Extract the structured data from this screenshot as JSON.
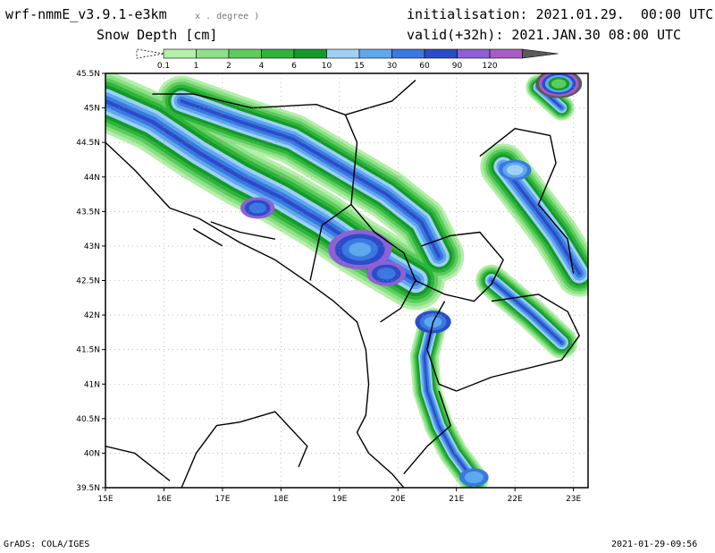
{
  "header": {
    "model": "wrf-nmmE_v3.9.1-e3km",
    "units_note": "x . degree )",
    "variable": "Snow Depth [cm]",
    "initialisation": "initialisation: 2021.01.29.  00:00 UTC",
    "valid": "valid(+32h): 2021.JAN.30 08:00 UTC"
  },
  "legend": {
    "labels": [
      "0.1",
      "1",
      "2",
      "4",
      "6",
      "10",
      "15",
      "30",
      "60",
      "90",
      "120"
    ],
    "colors": [
      "#ffffff",
      "#b4f0a8",
      "#8fe08a",
      "#5ccc5c",
      "#2fb33a",
      "#129a29",
      "#9ed1f5",
      "#5ea8ee",
      "#3b78e0",
      "#2b4cc8",
      "#8d60d6",
      "#a95bc4",
      "#5a5a5a"
    ]
  },
  "map_axes": {
    "lon_labels": [
      "15E",
      "16E",
      "17E",
      "18E",
      "19E",
      "20E",
      "21E",
      "22E",
      "23E"
    ],
    "lat_labels": [
      "45.5N",
      "45N",
      "44.5N",
      "44N",
      "43.5N",
      "43N",
      "42.5N",
      "42N",
      "41.5N",
      "41N",
      "40.5N",
      "40N",
      "39.5N"
    ]
  },
  "footer": {
    "left": "GrADS: COLA/IGES",
    "right": "2021-01-29-09:56"
  }
}
